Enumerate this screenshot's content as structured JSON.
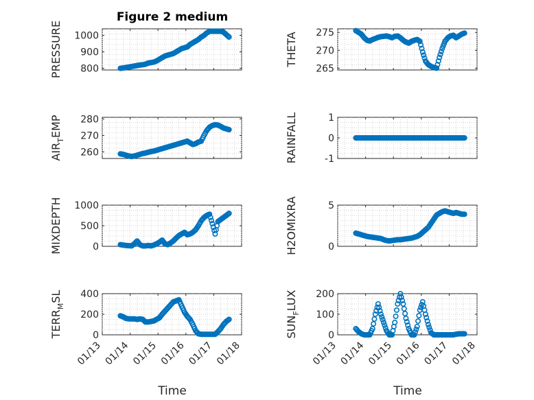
{
  "figure_title": "Figure 2 medium",
  "colors": {
    "marker": "#0072BD",
    "axes": "#262626"
  },
  "x_ticks": [
    "01/13",
    "01/14",
    "01/15",
    "01/16",
    "01/17",
    "01/18"
  ],
  "x_label": "Time",
  "chart_data": [
    {
      "type": "scatter",
      "title": "Figure 2 medium",
      "ylabel": "PRESSURE",
      "ylim": [
        790,
        1040
      ],
      "yticks": [
        800,
        900,
        1000
      ],
      "xlim": [
        13,
        18
      ],
      "x": [
        13.65,
        13.75,
        13.85,
        13.95,
        14.05,
        14.15,
        14.25,
        14.35,
        14.45,
        14.55,
        14.65,
        14.75,
        14.85,
        14.95,
        15.05,
        15.15,
        15.25,
        15.35,
        15.45,
        15.55,
        15.65,
        15.75,
        15.85,
        15.95,
        16.05,
        16.15,
        16.25,
        16.35,
        16.45,
        16.55,
        16.65,
        16.75,
        16.85,
        16.95,
        17.05,
        17.15,
        17.25,
        17.35,
        17.45,
        17.55
      ],
      "y": [
        800,
        802,
        805,
        808,
        811,
        814,
        817,
        820,
        822,
        825,
        832,
        835,
        838,
        845,
        855,
        865,
        875,
        880,
        885,
        890,
        900,
        910,
        920,
        925,
        930,
        945,
        955,
        965,
        975,
        990,
        1000,
        1015,
        1025,
        1025,
        1025,
        1025,
        1025,
        1020,
        1005,
        990
      ]
    },
    {
      "type": "scatter",
      "ylabel": "THETA",
      "ylim": [
        264.5,
        276
      ],
      "yticks": [
        265,
        270,
        275
      ],
      "xlim": [
        13,
        18
      ],
      "x": [
        13.65,
        13.75,
        13.85,
        13.95,
        14.05,
        14.15,
        14.25,
        14.35,
        14.45,
        14.55,
        14.65,
        14.75,
        14.85,
        14.95,
        15.05,
        15.15,
        15.25,
        15.35,
        15.45,
        15.55,
        15.65,
        15.75,
        15.85,
        15.95,
        16.05,
        16.15,
        16.25,
        16.35,
        16.45,
        16.55,
        16.65,
        16.75,
        16.85,
        16.95,
        17.05,
        17.15,
        17.25,
        17.35,
        17.45,
        17.55
      ],
      "y": [
        275.5,
        275.0,
        274.5,
        273.5,
        272.8,
        272.6,
        273.0,
        273.3,
        273.6,
        273.8,
        273.9,
        274.0,
        273.8,
        273.5,
        273.9,
        274.0,
        273.5,
        272.8,
        272.3,
        272.0,
        272.5,
        272.8,
        273.0,
        272.5,
        269.5,
        267.0,
        266.0,
        265.5,
        265.2,
        265.0,
        268.0,
        270.5,
        272.5,
        273.5,
        274.0,
        274.2,
        273.5,
        274.0,
        274.5,
        274.8
      ]
    },
    {
      "type": "scatter",
      "ylabel": "AIR_TEMP",
      "ylabel_main": "AIR",
      "ylabel_sub": "T",
      "ylabel_rest": "EMP",
      "ylim": [
        256,
        281
      ],
      "yticks": [
        260,
        270,
        280
      ],
      "xlim": [
        13,
        18
      ],
      "x": [
        13.65,
        13.75,
        13.85,
        13.95,
        14.05,
        14.15,
        14.25,
        14.35,
        14.45,
        14.55,
        14.65,
        14.75,
        14.85,
        14.95,
        15.05,
        15.15,
        15.25,
        15.35,
        15.45,
        15.55,
        15.65,
        15.75,
        15.85,
        15.95,
        16.05,
        16.15,
        16.25,
        16.35,
        16.45,
        16.55,
        16.65,
        16.75,
        16.85,
        16.95,
        17.05,
        17.15,
        17.25,
        17.35,
        17.45,
        17.55
      ],
      "y": [
        258.8,
        258.5,
        258.0,
        257.5,
        257.2,
        257.5,
        258.0,
        258.5,
        259.0,
        259.3,
        259.8,
        260.2,
        260.5,
        261.0,
        261.5,
        262.0,
        262.5,
        263.0,
        263.5,
        264.0,
        264.5,
        265.0,
        265.5,
        266.0,
        266.5,
        265.5,
        264.5,
        265.0,
        266.0,
        266.5,
        270.0,
        273.0,
        275.0,
        276.0,
        276.5,
        276.3,
        275.5,
        274.5,
        274.0,
        273.5
      ]
    },
    {
      "type": "scatter",
      "ylabel": "RAINFALL",
      "ylim": [
        -1,
        1
      ],
      "yticks": [
        -1,
        0,
        1
      ],
      "xlim": [
        13,
        18
      ],
      "x": [
        13.65,
        13.75,
        13.85,
        13.95,
        14.05,
        14.15,
        14.25,
        14.35,
        14.45,
        14.55,
        14.65,
        14.75,
        14.85,
        14.95,
        15.05,
        15.15,
        15.25,
        15.35,
        15.45,
        15.55,
        15.65,
        15.75,
        15.85,
        15.95,
        16.05,
        16.15,
        16.25,
        16.35,
        16.45,
        16.55,
        16.65,
        16.75,
        16.85,
        16.95,
        17.05,
        17.15,
        17.25,
        17.35,
        17.45,
        17.55
      ],
      "y": [
        0,
        0,
        0,
        0,
        0,
        0,
        0,
        0,
        0,
        0,
        0,
        0,
        0,
        0,
        0,
        0,
        0,
        0,
        0,
        0,
        0,
        0,
        0,
        0,
        0,
        0,
        0,
        0,
        0,
        0,
        0,
        0,
        0,
        0,
        0,
        0,
        0,
        0,
        0,
        0
      ]
    },
    {
      "type": "scatter",
      "ylabel": "MIXDEPTH",
      "ylim": [
        0,
        1000
      ],
      "yticks": [
        0,
        500,
        1000
      ],
      "xlim": [
        13,
        18
      ],
      "x": [
        13.65,
        13.75,
        13.85,
        13.95,
        14.05,
        14.15,
        14.25,
        14.35,
        14.45,
        14.55,
        14.65,
        14.75,
        14.85,
        14.95,
        15.05,
        15.15,
        15.25,
        15.35,
        15.45,
        15.55,
        15.65,
        15.75,
        15.85,
        15.95,
        16.05,
        16.15,
        16.25,
        16.35,
        16.45,
        16.55,
        16.65,
        16.75,
        16.85,
        16.95,
        17.05,
        17.15,
        17.25,
        17.35,
        17.45,
        17.55
      ],
      "y": [
        40,
        30,
        20,
        15,
        10,
        60,
        130,
        40,
        10,
        10,
        20,
        10,
        30,
        60,
        100,
        150,
        60,
        40,
        80,
        130,
        200,
        260,
        300,
        340,
        280,
        300,
        340,
        400,
        500,
        620,
        700,
        750,
        780,
        550,
        300,
        600,
        650,
        700,
        750,
        800
      ]
    },
    {
      "type": "scatter",
      "ylabel": "H2OMIXRA",
      "ylim": [
        0,
        5
      ],
      "yticks": [
        0,
        5
      ],
      "xlim": [
        13,
        18
      ],
      "x": [
        13.65,
        13.75,
        13.85,
        13.95,
        14.05,
        14.15,
        14.25,
        14.35,
        14.45,
        14.55,
        14.65,
        14.75,
        14.85,
        14.95,
        15.05,
        15.15,
        15.25,
        15.35,
        15.45,
        15.55,
        15.65,
        15.75,
        15.85,
        15.95,
        16.05,
        16.15,
        16.25,
        16.35,
        16.45,
        16.55,
        16.65,
        16.75,
        16.85,
        16.95,
        17.05,
        17.15,
        17.25,
        17.35,
        17.45,
        17.55
      ],
      "y": [
        1.6,
        1.5,
        1.4,
        1.3,
        1.2,
        1.15,
        1.1,
        1.05,
        1.0,
        0.95,
        0.8,
        0.7,
        0.65,
        0.7,
        0.75,
        0.8,
        0.8,
        0.85,
        0.9,
        0.95,
        1.0,
        1.1,
        1.2,
        1.4,
        1.7,
        2.0,
        2.3,
        2.8,
        3.3,
        3.8,
        4.0,
        4.2,
        4.3,
        4.2,
        4.1,
        4.0,
        4.1,
        4.0,
        3.9,
        3.9
      ]
    },
    {
      "type": "scatter",
      "ylabel": "TERR_MSL",
      "ylabel_main": "TERR",
      "ylabel_sub": "M",
      "ylabel_rest": "SL",
      "ylim": [
        0,
        400
      ],
      "yticks": [
        0,
        200,
        400
      ],
      "xlim": [
        13,
        18
      ],
      "x": [
        13.65,
        13.75,
        13.85,
        13.95,
        14.05,
        14.15,
        14.25,
        14.35,
        14.45,
        14.55,
        14.65,
        14.75,
        14.85,
        14.95,
        15.05,
        15.15,
        15.25,
        15.35,
        15.45,
        15.55,
        15.65,
        15.75,
        15.85,
        15.95,
        16.05,
        16.15,
        16.25,
        16.35,
        16.45,
        16.55,
        16.65,
        16.75,
        16.85,
        16.95,
        17.05,
        17.15,
        17.25,
        17.35,
        17.45,
        17.55
      ],
      "y": [
        185,
        175,
        160,
        155,
        155,
        155,
        150,
        155,
        150,
        125,
        125,
        130,
        135,
        150,
        165,
        200,
        230,
        260,
        290,
        320,
        330,
        340,
        280,
        220,
        180,
        150,
        100,
        40,
        10,
        5,
        5,
        5,
        5,
        5,
        5,
        30,
        60,
        100,
        130,
        150
      ]
    },
    {
      "type": "scatter",
      "ylabel": "SUN_FLUX",
      "ylabel_main": "SUN",
      "ylabel_sub": "F",
      "ylabel_rest": "LUX",
      "ylim": [
        0,
        200
      ],
      "yticks": [
        0,
        100,
        200
      ],
      "xlim": [
        13,
        18
      ],
      "x": [
        13.65,
        13.75,
        13.85,
        13.95,
        14.05,
        14.15,
        14.25,
        14.35,
        14.45,
        14.55,
        14.65,
        14.75,
        14.85,
        14.95,
        15.05,
        15.15,
        15.25,
        15.35,
        15.45,
        15.55,
        15.65,
        15.75,
        15.85,
        15.95,
        16.05,
        16.15,
        16.25,
        16.35,
        16.45,
        16.55,
        16.65,
        16.75,
        16.85,
        16.95,
        17.05,
        17.15,
        17.25,
        17.35,
        17.45,
        17.55
      ],
      "y": [
        30,
        15,
        5,
        0,
        0,
        0,
        30,
        100,
        150,
        100,
        60,
        20,
        0,
        0,
        60,
        150,
        200,
        150,
        80,
        30,
        0,
        0,
        40,
        120,
        160,
        100,
        50,
        10,
        0,
        0,
        0,
        0,
        0,
        0,
        0,
        0,
        3,
        5,
        5,
        5
      ]
    }
  ]
}
